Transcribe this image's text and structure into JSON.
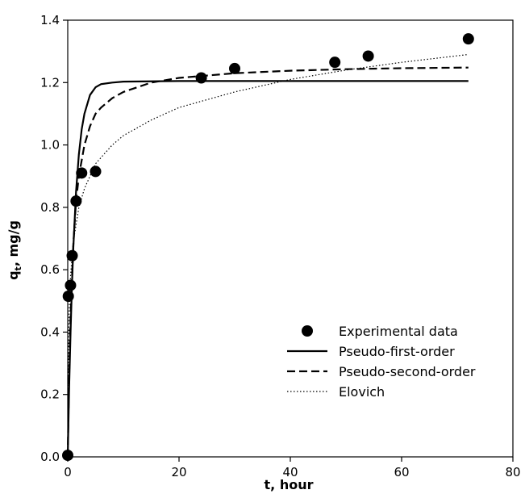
{
  "chart_data": {
    "type": "scatter",
    "title": "",
    "xlabel": "t, hour",
    "ylabel_main": "q",
    "ylabel_sub": "t",
    "ylabel_rest": ", mg/g",
    "xlim": [
      0,
      80
    ],
    "ylim": [
      0,
      1.4
    ],
    "xticks": [
      0,
      20,
      40,
      60,
      80
    ],
    "xtick_labels": [
      "0",
      "20",
      "40",
      "60",
      "80"
    ],
    "yticks": [
      0,
      0.2,
      0.4,
      0.6,
      0.8,
      1.0,
      1.2,
      1.4
    ],
    "ytick_labels": [
      "0.0",
      "0.2",
      "0.4",
      "0.6",
      "0.8",
      "1.0",
      "1.2",
      "1.4"
    ],
    "grid": false,
    "legend_position": "bottom-right",
    "series": [
      {
        "name": "Experimental data",
        "kind": "scatter",
        "x": [
          0,
          0.1,
          0.5,
          0.8,
          1.5,
          2.5,
          5,
          24,
          30,
          48,
          54,
          72
        ],
        "y": [
          0.005,
          0.515,
          0.55,
          0.645,
          0.82,
          0.91,
          0.915,
          1.215,
          1.245,
          1.265,
          1.285,
          1.34
        ]
      },
      {
        "name": "Pseudo-first-order",
        "kind": "line",
        "style": "solid",
        "x": [
          0,
          0.25,
          0.5,
          0.75,
          1,
          1.5,
          2,
          2.5,
          3,
          4,
          5,
          6,
          8,
          10,
          20,
          40,
          72
        ],
        "y": [
          0,
          0.22,
          0.4,
          0.55,
          0.67,
          0.85,
          0.97,
          1.05,
          1.1,
          1.16,
          1.185,
          1.195,
          1.2,
          1.203,
          1.205,
          1.205,
          1.205
        ]
      },
      {
        "name": "Pseudo-second-order",
        "kind": "line",
        "style": "dashed",
        "x": [
          0,
          0.25,
          0.5,
          1,
          1.5,
          2,
          3,
          4,
          5,
          6,
          8,
          10,
          15,
          20,
          30,
          40,
          50,
          60,
          72
        ],
        "y": [
          0,
          0.26,
          0.45,
          0.68,
          0.82,
          0.9,
          1.0,
          1.06,
          1.1,
          1.12,
          1.15,
          1.17,
          1.2,
          1.215,
          1.23,
          1.238,
          1.243,
          1.246,
          1.248
        ]
      },
      {
        "name": "Elovich",
        "kind": "line",
        "style": "dotted",
        "x": [
          0,
          0.1,
          0.25,
          0.5,
          1,
          2,
          3,
          5,
          8,
          10,
          15,
          20,
          30,
          40,
          50,
          60,
          72
        ],
        "y": [
          0,
          0.3,
          0.47,
          0.58,
          0.69,
          0.8,
          0.86,
          0.94,
          1.0,
          1.03,
          1.08,
          1.12,
          1.17,
          1.21,
          1.24,
          1.265,
          1.29
        ]
      }
    ]
  }
}
